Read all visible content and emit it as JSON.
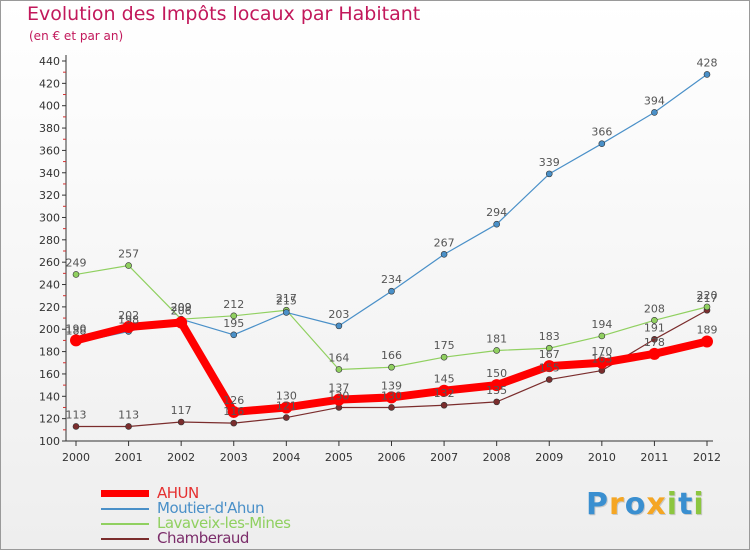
{
  "chart_data": {
    "type": "line",
    "title": "Evolution des Impôts locaux par Habitant",
    "subtitle": "(en € et par an)",
    "x": [
      "2000",
      "2001",
      "2002",
      "2003",
      "2004",
      "2005",
      "2006",
      "2007",
      "2008",
      "2009",
      "2010",
      "2011",
      "2012"
    ],
    "ylim": [
      100,
      440
    ],
    "yticks": [
      100,
      120,
      140,
      160,
      180,
      200,
      220,
      240,
      260,
      280,
      300,
      320,
      340,
      360,
      380,
      400,
      420,
      440
    ],
    "grid": false,
    "legend_position": "bottom-left",
    "series": [
      {
        "name": "AHUN",
        "color": "#ff0000",
        "values": [
          190,
          202,
          206,
          126,
          130,
          137,
          139,
          145,
          150,
          167,
          170,
          178,
          189
        ]
      },
      {
        "name": "Moutier-d'Ahun",
        "color": "#4a90c8",
        "values": [
          188,
          198,
          209,
          195,
          215,
          203,
          234,
          267,
          294,
          339,
          366,
          394,
          428
        ]
      },
      {
        "name": "Lavaveix-les-Mines",
        "color": "#90d060",
        "values": [
          249,
          257,
          209,
          212,
          217,
          164,
          166,
          175,
          181,
          183,
          194,
          208,
          220
        ]
      },
      {
        "name": "Chamberaud",
        "color": "#7b2d2d",
        "values": [
          113,
          113,
          117,
          116,
          121,
          130,
          130,
          132,
          135,
          155,
          163,
          191,
          217
        ]
      }
    ],
    "data_labels": [
      [
        190,
        202,
        206,
        126,
        130,
        137,
        139,
        145,
        150,
        167,
        170,
        178,
        189
      ],
      [
        188,
        198,
        209,
        195,
        215,
        203,
        234,
        267,
        294,
        339,
        366,
        394,
        428
      ],
      [
        249,
        257,
        209,
        212,
        217,
        164,
        166,
        175,
        181,
        183,
        194,
        208,
        220
      ],
      [
        113,
        113,
        117,
        116,
        121,
        130,
        130,
        132,
        135,
        155,
        163,
        191,
        217
      ]
    ]
  },
  "brand": {
    "text": "Proxiti",
    "letters": [
      {
        "ch": "P",
        "color": "#3a8fd0"
      },
      {
        "ch": "r",
        "color": "#f5a623"
      },
      {
        "ch": "o",
        "color": "#3a8fd0"
      },
      {
        "ch": "x",
        "color": "#f5a623"
      },
      {
        "ch": "i",
        "color": "#8cc63f"
      },
      {
        "ch": "t",
        "color": "#3a8fd0"
      },
      {
        "ch": "i",
        "color": "#8cc63f"
      }
    ]
  },
  "colors": {
    "title": "#c2185b",
    "axis": "#333333",
    "label": "#555555",
    "minor_tick": "#d03030"
  }
}
